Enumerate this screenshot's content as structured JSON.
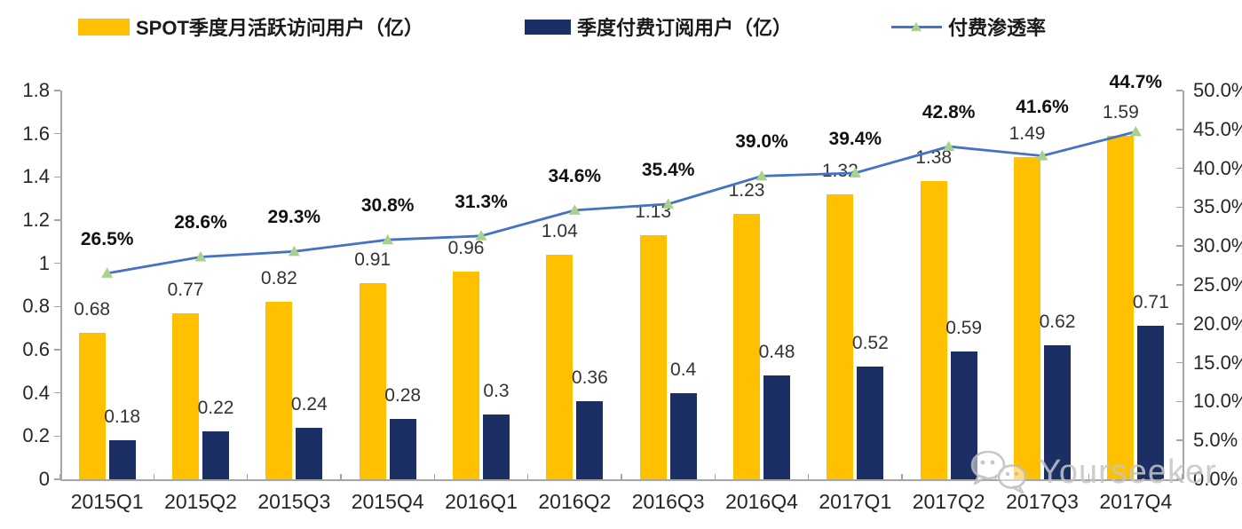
{
  "legend": {
    "mau": {
      "label": "SPOT季度月活跃访问用户（亿）"
    },
    "subs": {
      "label": "季度付费订阅用户（亿）"
    },
    "penetration": {
      "label": "付费渗透率"
    }
  },
  "colors": {
    "mau_bar": "#FFC000",
    "subs_bar": "#1B2F65",
    "line": "#4472C4",
    "marker": "#A9D18E",
    "axis": "#A6A6A6"
  },
  "watermark": {
    "text": "Yourseeker"
  },
  "chart_data": {
    "type": "bar",
    "subtype": "combo-bar-line",
    "categories": [
      "2015Q1",
      "2015Q2",
      "2015Q3",
      "2015Q4",
      "2016Q1",
      "2016Q2",
      "2016Q3",
      "2016Q4",
      "2017Q1",
      "2017Q2",
      "2017Q3",
      "2017Q4"
    ],
    "series": [
      {
        "name": "SPOT季度月活跃访问用户（亿）",
        "type": "bar",
        "axis": "left",
        "color": "#FFC000",
        "values": [
          0.68,
          0.77,
          0.82,
          0.91,
          0.96,
          1.04,
          1.13,
          1.23,
          1.32,
          1.38,
          1.49,
          1.59
        ],
        "labels": [
          "0.68",
          "0.77",
          "0.82",
          "0.91",
          "0.96",
          "1.04",
          "1.13",
          "1.23",
          "1.32",
          "1.38",
          "1.49",
          "1.59"
        ]
      },
      {
        "name": "季度付费订阅用户（亿）",
        "type": "bar",
        "axis": "left",
        "color": "#1B2F65",
        "values": [
          0.18,
          0.22,
          0.24,
          0.28,
          0.3,
          0.36,
          0.4,
          0.48,
          0.52,
          0.59,
          0.62,
          0.71
        ],
        "labels": [
          "0.18",
          "0.22",
          "0.24",
          "0.28",
          "0.3",
          "0.36",
          "0.4",
          "0.48",
          "0.52",
          "0.59",
          "0.62",
          "0.71"
        ]
      },
      {
        "name": "付费渗透率",
        "type": "line",
        "axis": "right",
        "color": "#4472C4",
        "marker": "triangle",
        "values": [
          26.5,
          28.6,
          29.3,
          30.8,
          31.3,
          34.6,
          35.4,
          39.0,
          39.4,
          42.8,
          41.6,
          44.7
        ],
        "labels": [
          "26.5%",
          "28.6%",
          "29.3%",
          "30.8%",
          "31.3%",
          "34.6%",
          "35.4%",
          "39.0%",
          "39.4%",
          "42.8%",
          "41.6%",
          "44.7%"
        ]
      }
    ],
    "left_axis": {
      "min": 0,
      "max": 1.8,
      "step": 0.2,
      "ticks": [
        "1.8",
        "1.6",
        "1.4",
        "1.2",
        "1",
        "0.8",
        "0.6",
        "0.4",
        "0.2",
        "0"
      ]
    },
    "right_axis": {
      "min": 0,
      "max": 50,
      "step": 5,
      "unit": "%",
      "ticks": [
        "50.0%",
        "45.0%",
        "40.0%",
        "35.0%",
        "30.0%",
        "25.0%",
        "20.0%",
        "15.0%",
        "10.0%",
        "5.0%",
        "0.0%"
      ]
    },
    "grid": false,
    "legend_position": "top"
  }
}
